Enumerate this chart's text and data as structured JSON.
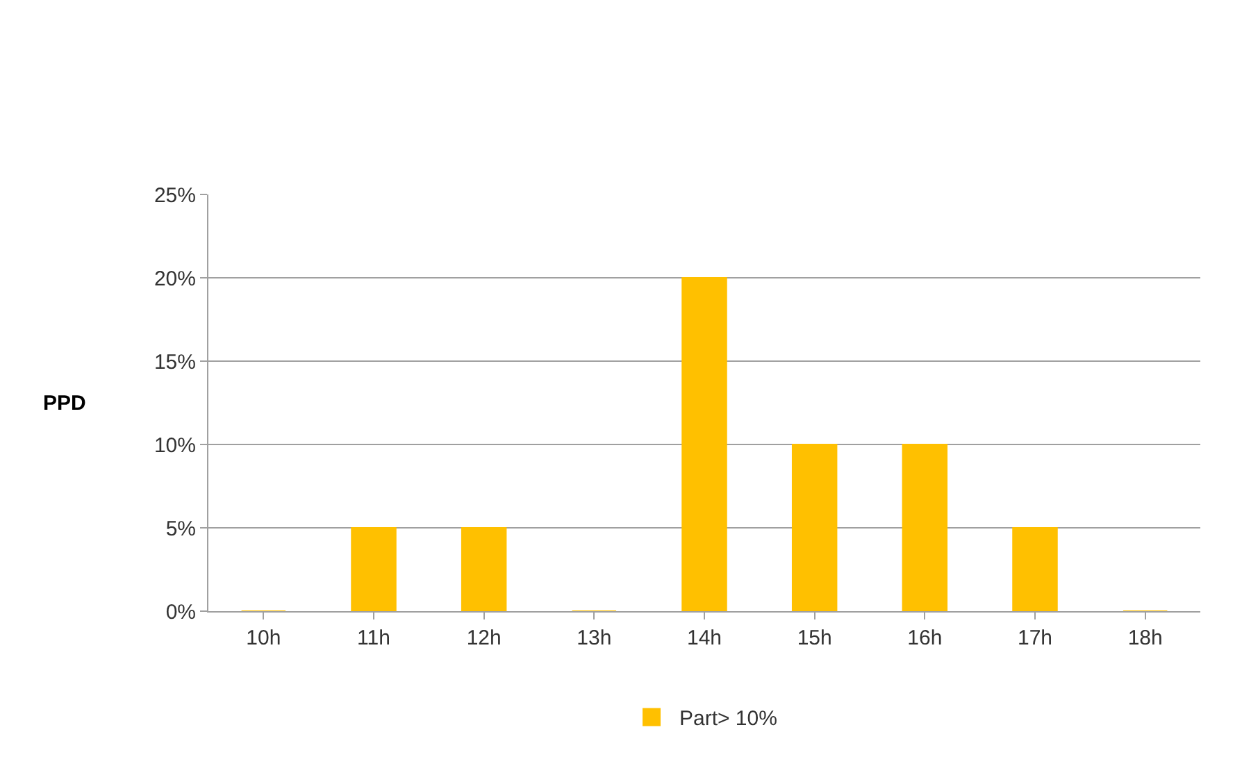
{
  "chart_data": {
    "type": "bar",
    "ylabel": "PPD",
    "categories": [
      "10h",
      "11h",
      "12h",
      "13h",
      "14h",
      "15h",
      "16h",
      "17h",
      "18h"
    ],
    "series": [
      {
        "name": "Part> 10%",
        "color": "#ffc000",
        "values": [
          0,
          5,
          5,
          0,
          20,
          10,
          10,
          5,
          0
        ]
      }
    ],
    "ylim": [
      0,
      25
    ],
    "yticks": [
      {
        "value": 0,
        "label": "0%"
      },
      {
        "value": 5,
        "label": "5%"
      },
      {
        "value": 10,
        "label": "10%"
      },
      {
        "value": 15,
        "label": "15%"
      },
      {
        "value": 20,
        "label": "20%"
      },
      {
        "value": 25,
        "label": "25%"
      }
    ],
    "grid": "y",
    "legend": "bottom"
  }
}
